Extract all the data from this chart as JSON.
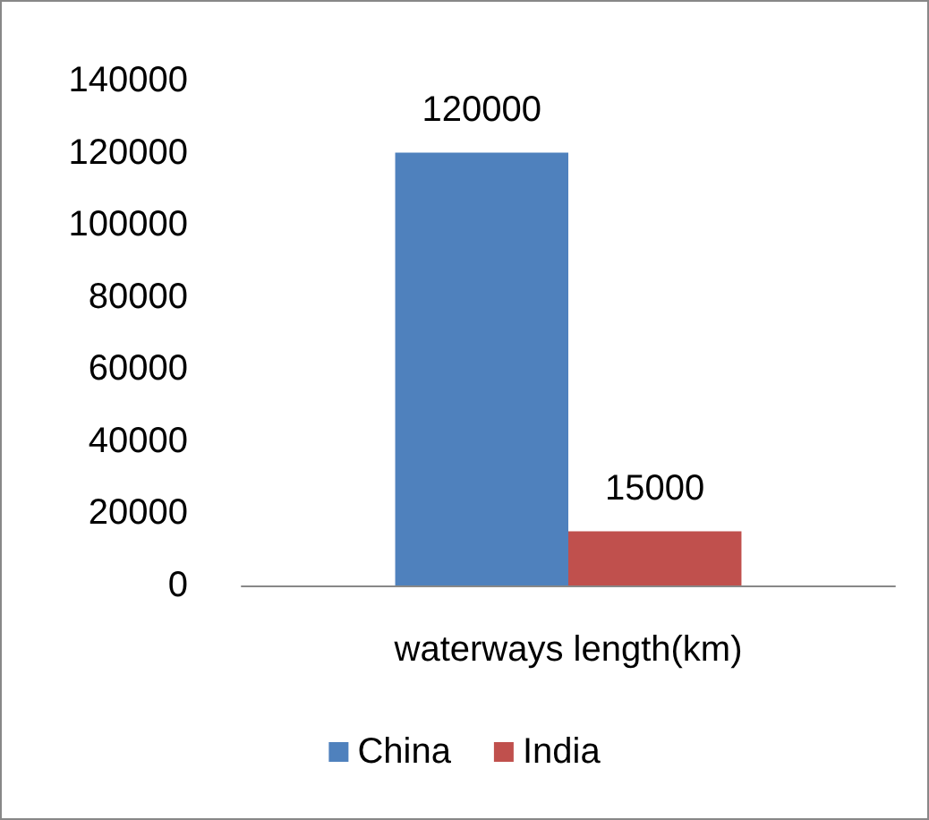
{
  "chart_data": {
    "type": "bar",
    "categories": [
      "waterways length(km)"
    ],
    "series": [
      {
        "name": "China",
        "color": "#4f81bd",
        "values": [
          120000
        ]
      },
      {
        "name": "India",
        "color": "#c0504d",
        "values": [
          15000
        ]
      }
    ],
    "ylim": [
      0,
      140000
    ],
    "yticks": [
      0,
      20000,
      40000,
      60000,
      80000,
      100000,
      120000,
      140000
    ],
    "grid": false,
    "legend": "bottom",
    "data_labels": true
  }
}
